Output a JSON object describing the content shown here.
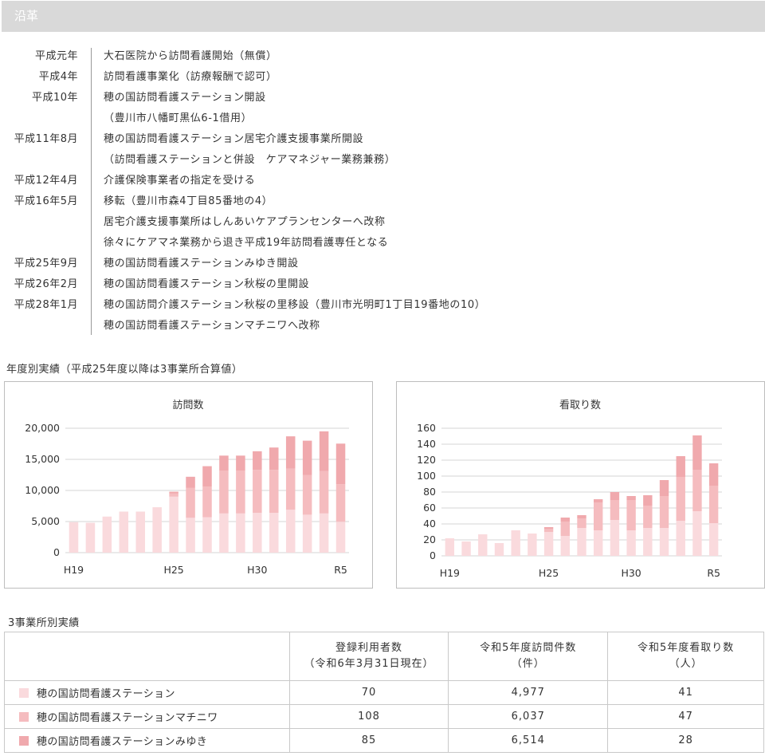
{
  "header": {
    "title": "沿革"
  },
  "history": [
    {
      "year": "平成元年",
      "text": "大石医院から訪問看護開始（無償）"
    },
    {
      "year": "平成4年",
      "text": "訪問看護事業化（訪療報酬で認可）"
    },
    {
      "year": "平成10年",
      "text": "穂の国訪問看護ステーション開設"
    },
    {
      "year": "",
      "text": "（豊川市八幡町黒仏6-1借用）"
    },
    {
      "year": "平成11年8月",
      "text": "穂の国訪問看護ステーション居宅介護支援事業所開設"
    },
    {
      "year": "",
      "text": "（訪問看護ステーションと併設　ケアマネジャー業務兼務）"
    },
    {
      "year": "平成12年4月",
      "text": "介護保険事業者の指定を受ける"
    },
    {
      "year": "平成16年5月",
      "text": "移転（豊川市森4丁目85番地の4）"
    },
    {
      "year": "",
      "text": "居宅介護支援事業所はしんあいケアプランセンターへ改称"
    },
    {
      "year": "",
      "text": "徐々にケアマネ業務から退き平成19年訪問看護専任となる"
    },
    {
      "year": "平成25年9月",
      "text": "穂の国訪問看護ステーションみゆき開設"
    },
    {
      "year": "平成26年2月",
      "text": "穂の国訪問看護ステーション秋桜の里開設"
    },
    {
      "year": "平成28年1月",
      "text": "穂の国訪問介護ステーション秋桜の里移設（豊川市光明町1丁目19番地の10）"
    },
    {
      "year": "",
      "text": "穂の国訪問看護ステーションマチニワへ改称"
    }
  ],
  "results_title": "年度別実績（平成25年度以降は3事業所合算値）",
  "colors": {
    "light": "#fadadd",
    "mid": "#f5bcbf",
    "dark": "#f0a9ad",
    "grid": "#d6d6d6"
  },
  "chart_data": [
    {
      "type": "bar",
      "stacked": true,
      "title": "訪問数",
      "categories": [
        "H19",
        "H20",
        "H21",
        "H22",
        "H23",
        "H24",
        "H25",
        "H26",
        "H27",
        "H28",
        "H29",
        "H30",
        "R1",
        "R2",
        "R3",
        "R4",
        "R5"
      ],
      "x_tick_labels": {
        "H19": "H19",
        "H25": "H25",
        "H30": "H30",
        "R5": "R5"
      },
      "ylim": [
        0,
        20000
      ],
      "yticks": [
        0,
        5000,
        10000,
        15000,
        20000
      ],
      "ytick_labels": [
        "0",
        "5,000",
        "10,000",
        "15,000",
        "20,000"
      ],
      "series": [
        {
          "color": "light",
          "values": [
            4900,
            4800,
            5800,
            6600,
            6600,
            7300,
            9000,
            5600,
            5700,
            6300,
            6300,
            6400,
            6400,
            6900,
            6100,
            6300,
            4977
          ]
        },
        {
          "color": "mid",
          "values": [
            0,
            0,
            0,
            0,
            0,
            0,
            500,
            4800,
            4900,
            6900,
            6900,
            6900,
            6900,
            6600,
            6400,
            6800,
            6037
          ]
        },
        {
          "color": "dark",
          "values": [
            0,
            0,
            0,
            0,
            0,
            0,
            300,
            1800,
            3300,
            2400,
            2400,
            3000,
            3600,
            5200,
            5500,
            6400,
            6514
          ]
        }
      ]
    },
    {
      "type": "bar",
      "stacked": true,
      "title": "看取り数",
      "categories": [
        "H19",
        "H20",
        "H21",
        "H22",
        "H23",
        "H24",
        "H25",
        "H26",
        "H27",
        "H28",
        "H29",
        "H30",
        "R1",
        "R2",
        "R3",
        "R4",
        "R5"
      ],
      "x_tick_labels": {
        "H19": "H19",
        "H25": "H25",
        "H30": "H30",
        "R5": "R5"
      },
      "ylim": [
        0,
        160
      ],
      "yticks": [
        0,
        20,
        40,
        60,
        80,
        100,
        120,
        140,
        160
      ],
      "ytick_labels": [
        "0",
        "20",
        "40",
        "60",
        "80",
        "100",
        "120",
        "140",
        "160"
      ],
      "series": [
        {
          "color": "light",
          "values": [
            22,
            18,
            27,
            16,
            32,
            28,
            30,
            25,
            35,
            32,
            45,
            32,
            35,
            35,
            44,
            56,
            41
          ]
        },
        {
          "color": "mid",
          "values": [
            0,
            0,
            0,
            0,
            0,
            0,
            4,
            18,
            12,
            35,
            25,
            38,
            28,
            40,
            55,
            52,
            47
          ]
        },
        {
          "color": "dark",
          "values": [
            0,
            0,
            0,
            0,
            0,
            0,
            2,
            5,
            4,
            4,
            10,
            5,
            13,
            20,
            26,
            43,
            28
          ]
        }
      ]
    }
  ],
  "office_table": {
    "title": "3事業所別実績",
    "headers": [
      "",
      "登録利用者数\n（令和6年3月31日現在）",
      "令和5年度訪問件数\n（件）",
      "令和5年度看取り数\n（人）"
    ],
    "rows": [
      {
        "color": "light",
        "name": "穂の国訪問看護ステーション",
        "users": "70",
        "visits": "4,977",
        "deaths": "41"
      },
      {
        "color": "mid",
        "name": "穂の国訪問看護ステーションマチニワ",
        "users": "108",
        "visits": "6,037",
        "deaths": "47"
      },
      {
        "color": "dark",
        "name": "穂の国訪問看護ステーションみゆき",
        "users": "85",
        "visits": "6,514",
        "deaths": "28"
      }
    ]
  }
}
